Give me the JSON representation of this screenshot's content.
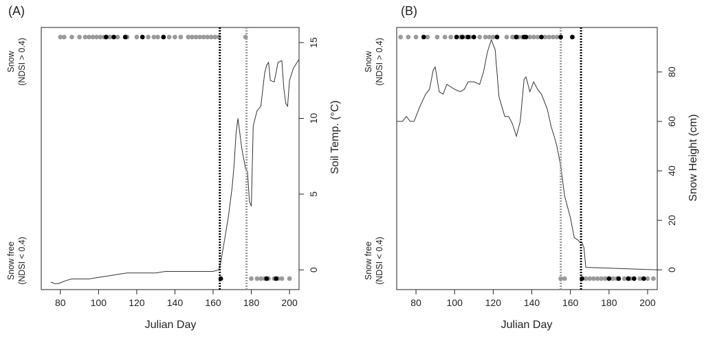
{
  "chart_data": [
    {
      "type": "line",
      "panel_label": "(A)",
      "xlabel": "Julian Day",
      "ylabel_right": "Soil Temp. (°C)",
      "ylabel_left_top": [
        "Snow",
        "(NDSI > 0.4)"
      ],
      "ylabel_left_bottom": [
        "Snow free",
        "(NDSI < 0.4)"
      ],
      "xlim": [
        70,
        205
      ],
      "ylim": [
        -1.3,
        16
      ],
      "x_ticks": [
        80,
        100,
        120,
        140,
        160,
        180,
        200
      ],
      "y_ticks": [
        0,
        5,
        10,
        15
      ],
      "y_tick_side": "right",
      "series": [
        {
          "x": [
            75,
            77,
            79,
            81,
            83,
            86,
            90,
            95,
            100,
            105,
            110,
            115,
            120,
            125,
            130,
            135,
            140,
            145,
            150,
            155,
            160,
            163,
            164,
            166,
            168,
            170,
            171,
            172,
            173,
            175,
            177,
            178,
            179,
            180,
            181,
            183,
            185,
            187,
            188,
            189,
            190,
            192,
            194,
            196,
            197,
            198,
            199,
            200,
            202,
            205
          ],
          "values": [
            -0.8,
            -0.9,
            -0.9,
            -0.8,
            -0.7,
            -0.6,
            -0.6,
            -0.6,
            -0.5,
            -0.4,
            -0.3,
            -0.2,
            -0.2,
            -0.2,
            -0.2,
            -0.1,
            -0.1,
            -0.1,
            -0.1,
            -0.1,
            -0.1,
            0,
            0.5,
            2,
            3.5,
            5.5,
            7,
            9,
            10,
            8,
            6.7,
            6.5,
            4.5,
            4.2,
            9.5,
            10.5,
            10.8,
            13,
            13.5,
            13.7,
            12.5,
            12.4,
            13.7,
            13.8,
            12,
            11,
            10.8,
            12.5,
            13.3,
            13.9
          ]
        }
      ],
      "snow_points_gray": [
        80,
        82,
        86,
        90,
        93,
        95,
        97,
        99,
        101,
        103,
        106,
        110,
        115,
        120,
        126,
        129,
        131,
        137,
        140,
        143,
        147,
        149,
        151,
        153,
        155,
        157,
        159,
        161,
        163,
        177
      ],
      "snow_points_black": [
        104,
        108,
        114,
        123,
        134
      ],
      "snowfree_points_gray": [
        180,
        183,
        185,
        187,
        189,
        192,
        194,
        196,
        200
      ],
      "snowfree_points_black": [
        164,
        188,
        193
      ],
      "vlines": [
        {
          "x": 163.5,
          "color": "#000000"
        },
        {
          "x": 177.5,
          "color": "#9a9a9a"
        }
      ]
    },
    {
      "type": "line",
      "panel_label": "(B)",
      "xlabel": "Julian Day",
      "ylabel_right": "Snow Height (cm)",
      "ylabel_left_top": [
        "Snow",
        "(NDSI > 0.4)"
      ],
      "ylabel_left_bottom": [
        "Snow free",
        "(NDSI < 0.4)"
      ],
      "xlim": [
        70,
        205
      ],
      "ylim": [
        -8,
        98
      ],
      "x_ticks": [
        80,
        100,
        120,
        140,
        160,
        180,
        200
      ],
      "y_ticks": [
        0,
        20,
        40,
        60,
        80
      ],
      "y_tick_side": "right",
      "series": [
        {
          "x": [
            70,
            73,
            75,
            77,
            79,
            82,
            85,
            87,
            89,
            90,
            92,
            94,
            96,
            98,
            100,
            103,
            105,
            107,
            110,
            113,
            115,
            117,
            119,
            121,
            123,
            126,
            128,
            130,
            132,
            134,
            136,
            137,
            139,
            141,
            143,
            145,
            148,
            150,
            152,
            153,
            155,
            157,
            160,
            162,
            164,
            165,
            166,
            167,
            168,
            205
          ],
          "values": [
            60,
            60,
            62,
            60,
            60,
            66,
            71,
            73,
            81,
            82,
            72,
            71,
            75,
            74,
            73,
            72,
            73,
            76,
            76,
            75,
            80,
            88,
            93,
            89,
            70,
            62,
            62,
            59,
            54,
            60,
            77,
            78,
            72,
            76,
            73,
            71,
            65,
            58,
            53,
            50,
            42,
            30,
            21,
            13,
            12,
            11,
            11,
            9,
            1,
            0
          ]
        }
      ],
      "snow_points_gray": [
        72,
        76,
        80,
        86,
        91,
        95,
        98,
        103,
        106,
        108,
        113,
        116,
        118,
        120,
        127,
        130,
        131,
        133,
        135,
        139,
        141,
        143,
        147,
        149,
        151,
        153
      ],
      "snow_points_black": [
        84,
        101,
        104,
        107,
        110,
        122,
        132,
        136,
        137,
        145,
        155,
        161
      ],
      "snowfree_points_gray": [
        155,
        157,
        168,
        170,
        172,
        174,
        176,
        178,
        182,
        184,
        188,
        191,
        196,
        200,
        203
      ],
      "snowfree_points_black": [
        166,
        180,
        185,
        190,
        193,
        198
      ],
      "vlines": [
        {
          "x": 155,
          "color": "#9a9a9a"
        },
        {
          "x": 165.5,
          "color": "#000000"
        }
      ]
    }
  ]
}
